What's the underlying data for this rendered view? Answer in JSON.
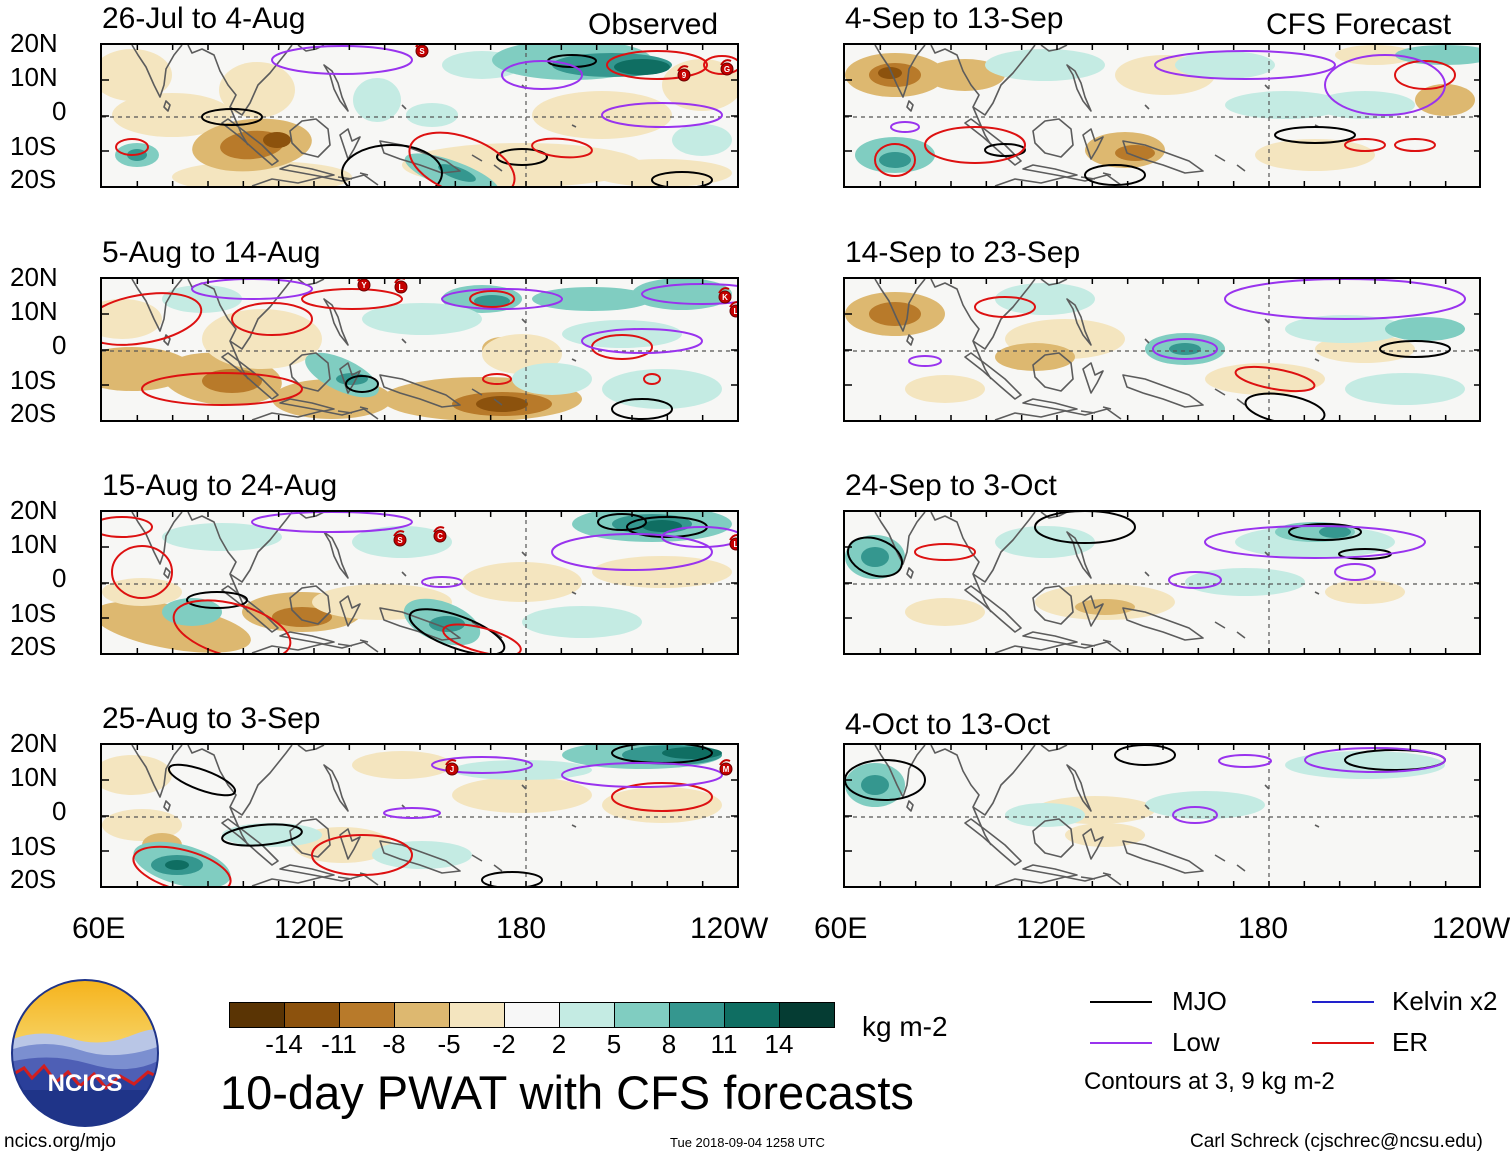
{
  "header": {
    "left_tag": "Observed",
    "right_tag": "CFS Forecast"
  },
  "panels_observed": [
    {
      "title": "26-Jul to 4-Aug"
    },
    {
      "title": "5-Aug to 14-Aug"
    },
    {
      "title": "15-Aug to 24-Aug"
    },
    {
      "title": "25-Aug to 3-Sep"
    }
  ],
  "panels_forecast": [
    {
      "title": "4-Sep to 13-Sep"
    },
    {
      "title": "14-Sep to 23-Sep"
    },
    {
      "title": "24-Sep to 3-Oct"
    },
    {
      "title": "4-Oct to 13-Oct"
    }
  ],
  "lat_labels": [
    "20N",
    "10N",
    "0",
    "10S",
    "20S"
  ],
  "lon_labels_left": [
    "60E",
    "120E",
    "180",
    "120W"
  ],
  "lon_labels_right": [
    "60E",
    "120E",
    "180",
    "120W"
  ],
  "colorbar": {
    "unit": "kg m-2",
    "ticks": [
      "-14",
      "-11",
      "-8",
      "-5",
      "-2",
      "2",
      "5",
      "8",
      "11",
      "14"
    ],
    "colors": [
      "#5a3404",
      "#8c520d",
      "#b87a2a",
      "#ddb870",
      "#f4e5bf",
      "#f7f7f7",
      "#c4ebe3",
      "#80cdc1",
      "#35978f",
      "#0f6e62",
      "#053c33"
    ]
  },
  "main_title": "10-day PWAT with CFS forecasts",
  "legend": {
    "mjo": {
      "label": "MJO",
      "color": "#000000"
    },
    "low": {
      "label": "Low",
      "color": "#9933ee"
    },
    "kelvin": {
      "label": "Kelvin x2",
      "color": "#2222cc"
    },
    "er": {
      "label": "ER",
      "color": "#dd1111"
    },
    "note": "Contours at 3, 9 kg m-2"
  },
  "logo": {
    "text": "NCICS"
  },
  "footer": {
    "url": "ncics.org/mjo",
    "timestamp": "Tue 2018-09-04 1258 UTC",
    "credit": "Carl Schreck (cjschrec@ncsu.edu)"
  },
  "storm_markers": [
    {
      "panel": 0,
      "label": "S"
    },
    {
      "panel": 0,
      "label": "9"
    },
    {
      "panel": 0,
      "label": "G"
    },
    {
      "panel": 1,
      "label": "Y"
    },
    {
      "panel": 1,
      "label": "L"
    },
    {
      "panel": 1,
      "label": "K"
    },
    {
      "panel": 1,
      "label": "L"
    },
    {
      "panel": 2,
      "label": "S"
    },
    {
      "panel": 2,
      "label": "C"
    },
    {
      "panel": 2,
      "label": "L"
    },
    {
      "panel": 3,
      "label": "J"
    },
    {
      "panel": 3,
      "label": "M"
    }
  ]
}
